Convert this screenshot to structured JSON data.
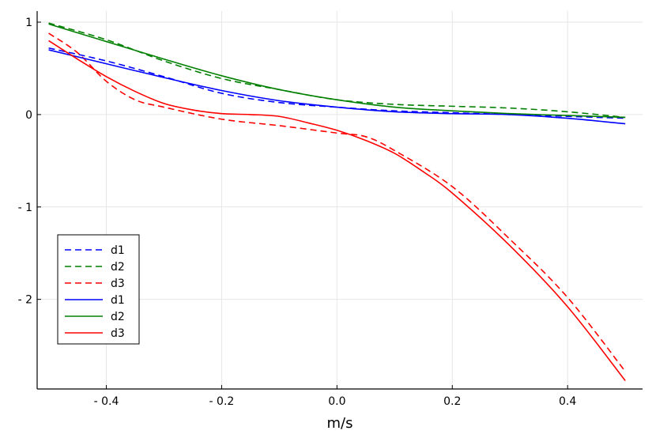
{
  "chart_data": {
    "type": "line",
    "title": "",
    "xlabel": "m/s",
    "ylabel": "",
    "xlim": [
      -0.52,
      0.53
    ],
    "ylim": [
      -2.97,
      1.12
    ],
    "x_ticks": [
      -0.4,
      -0.2,
      0.0,
      0.2,
      0.4
    ],
    "x_tick_labels": [
      "- 0.4",
      "- 0.2",
      "0.0",
      "0.2",
      "0.4"
    ],
    "y_ticks": [
      1,
      0,
      -1,
      -2
    ],
    "y_tick_labels": [
      "1",
      "0",
      "- 1",
      "- 2"
    ],
    "grid": true,
    "legend_position": "bottom-left",
    "colors": {
      "d1": "#0000ff",
      "d2": "#008000",
      "d3": "#ff0000"
    },
    "series": [
      {
        "name": "d1",
        "style": "dashed",
        "color": "#0000ff",
        "x": [
          -0.5,
          -0.4,
          -0.3,
          -0.2,
          -0.1,
          0.0,
          0.1,
          0.2,
          0.3,
          0.4,
          0.5
        ],
        "y": [
          0.72,
          0.58,
          0.41,
          0.23,
          0.13,
          0.08,
          0.04,
          0.02,
          0.0,
          -0.02,
          -0.04
        ]
      },
      {
        "name": "d2",
        "style": "dashed",
        "color": "#008000",
        "x": [
          -0.5,
          -0.4,
          -0.3,
          -0.2,
          -0.1,
          0.0,
          0.1,
          0.2,
          0.3,
          0.4,
          0.5
        ],
        "y": [
          0.99,
          0.81,
          0.58,
          0.39,
          0.27,
          0.16,
          0.11,
          0.09,
          0.07,
          0.03,
          -0.03
        ]
      },
      {
        "name": "d3",
        "style": "dashed",
        "color": "#ff0000",
        "x": [
          -0.5,
          -0.45,
          -0.4,
          -0.35,
          -0.3,
          -0.2,
          -0.1,
          0.0,
          0.05,
          0.1,
          0.2,
          0.3,
          0.4,
          0.5
        ],
        "y": [
          0.88,
          0.67,
          0.36,
          0.16,
          0.08,
          -0.05,
          -0.12,
          -0.2,
          -0.24,
          -0.39,
          -0.78,
          -1.35,
          -1.98,
          -2.78
        ]
      },
      {
        "name": "d1",
        "style": "solid",
        "color": "#0000ff",
        "x": [
          -0.5,
          -0.4,
          -0.3,
          -0.2,
          -0.1,
          0.0,
          0.1,
          0.2,
          0.3,
          0.4,
          0.5
        ],
        "y": [
          0.7,
          0.55,
          0.4,
          0.26,
          0.15,
          0.08,
          0.03,
          0.01,
          0.0,
          -0.04,
          -0.1
        ]
      },
      {
        "name": "d2",
        "style": "solid",
        "color": "#008000",
        "x": [
          -0.5,
          -0.4,
          -0.3,
          -0.2,
          -0.1,
          0.0,
          0.1,
          0.2,
          0.3,
          0.4,
          0.5
        ],
        "y": [
          0.98,
          0.79,
          0.6,
          0.42,
          0.27,
          0.16,
          0.08,
          0.04,
          0.01,
          -0.01,
          -0.03
        ]
      },
      {
        "name": "d3",
        "style": "solid",
        "color": "#ff0000",
        "x": [
          -0.5,
          -0.45,
          -0.4,
          -0.35,
          -0.3,
          -0.25,
          -0.2,
          -0.15,
          -0.1,
          -0.05,
          0.0,
          0.05,
          0.1,
          0.15,
          0.2,
          0.3,
          0.4,
          0.5
        ],
        "y": [
          0.8,
          0.6,
          0.41,
          0.25,
          0.12,
          0.05,
          0.01,
          0.0,
          -0.02,
          -0.09,
          -0.17,
          -0.28,
          -0.42,
          -0.62,
          -0.85,
          -1.42,
          -2.08,
          -2.88
        ]
      }
    ]
  }
}
